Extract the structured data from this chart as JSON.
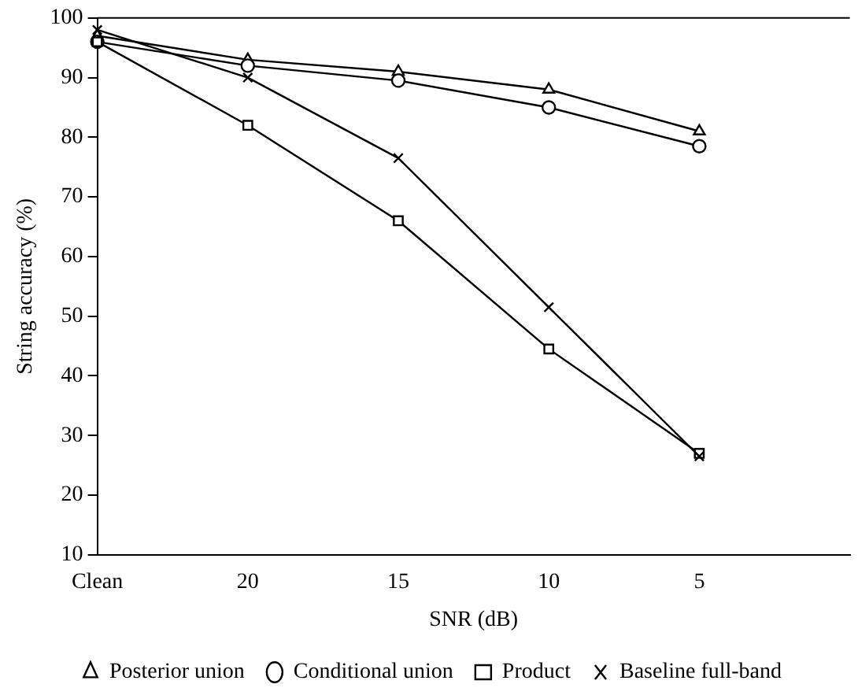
{
  "chart_data": {
    "type": "line",
    "xlabel": "SNR (dB)",
    "ylabel": "String accuracy (%)",
    "categories": [
      "Clean",
      "20",
      "15",
      "10",
      "5"
    ],
    "series": [
      {
        "name": "Posterior union",
        "color": "#000000",
        "marker": "triangle",
        "values": [
          97,
          93,
          91,
          88,
          81
        ]
      },
      {
        "name": "Conditional union",
        "color": "#000000",
        "marker": "circle",
        "values": [
          96,
          92,
          89.5,
          85,
          78.5
        ]
      },
      {
        "name": "Product",
        "color": "#000000",
        "marker": "square",
        "values": [
          96,
          82,
          66,
          44.5,
          27
        ]
      },
      {
        "name": "Baseline full-band",
        "color": "#000000",
        "marker": "cross",
        "values": [
          98,
          90,
          76.5,
          51.5,
          26.5
        ]
      }
    ],
    "ylim": [
      10,
      100
    ],
    "yticks": [
      10,
      20,
      30,
      40,
      50,
      60,
      70,
      80,
      90,
      100
    ],
    "grid": false,
    "legend": "bottom"
  }
}
